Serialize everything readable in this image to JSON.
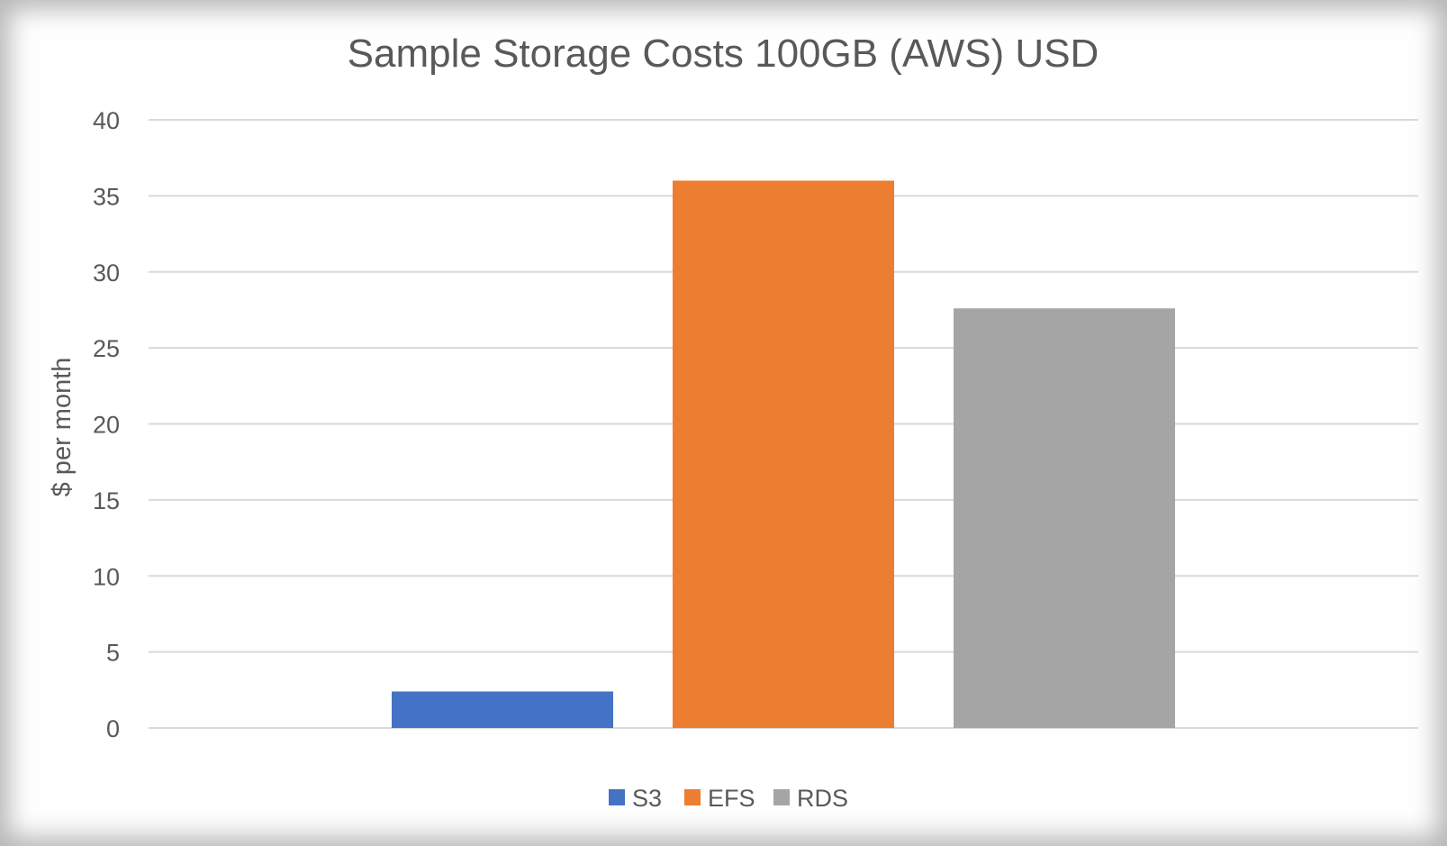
{
  "chart_data": {
    "type": "bar",
    "title": "Sample Storage Costs 100GB (AWS) USD",
    "xlabel": "",
    "ylabel": "$ per month",
    "ylim": [
      0,
      40
    ],
    "yticks": [
      0,
      5,
      10,
      15,
      20,
      25,
      30,
      35,
      40
    ],
    "grid": true,
    "legend_position": "bottom",
    "series": [
      {
        "name": "S3",
        "values": [
          2.4
        ],
        "color": "#4472c4"
      },
      {
        "name": "EFS",
        "values": [
          36
        ],
        "color": "#ed7d31"
      },
      {
        "name": "RDS",
        "values": [
          27.6
        ],
        "color": "#a5a5a5"
      }
    ]
  }
}
